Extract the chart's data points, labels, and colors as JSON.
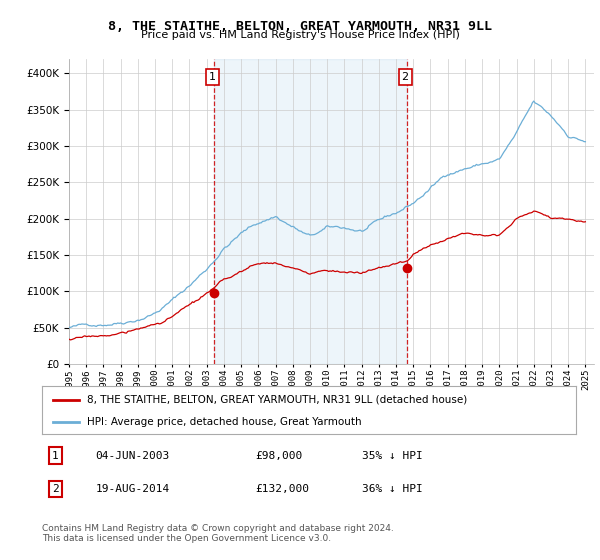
{
  "title": "8, THE STAITHE, BELTON, GREAT YARMOUTH, NR31 9LL",
  "subtitle": "Price paid vs. HM Land Registry's House Price Index (HPI)",
  "hpi_color": "#6baed6",
  "hpi_fill_color": "#ddeeff",
  "sale_color": "#cc0000",
  "sale1_x": 2003.43,
  "sale1_y": 98000,
  "sale2_x": 2014.63,
  "sale2_y": 132000,
  "ylim": [
    0,
    420000
  ],
  "yticks": [
    0,
    50000,
    100000,
    150000,
    200000,
    250000,
    300000,
    350000,
    400000
  ],
  "xlim_start": 1995.0,
  "xlim_end": 2025.5,
  "legend_sale_label": "8, THE STAITHE, BELTON, GREAT YARMOUTH, NR31 9LL (detached house)",
  "legend_hpi_label": "HPI: Average price, detached house, Great Yarmouth",
  "note1_label": "1",
  "note1_date": "04-JUN-2003",
  "note1_price": "£98,000",
  "note1_hpi": "35% ↓ HPI",
  "note2_label": "2",
  "note2_date": "19-AUG-2014",
  "note2_price": "£132,000",
  "note2_hpi": "36% ↓ HPI",
  "footer": "Contains HM Land Registry data © Crown copyright and database right 2024.\nThis data is licensed under the Open Government Licence v3.0.",
  "bg_color": "#ffffff",
  "grid_color": "#cccccc"
}
